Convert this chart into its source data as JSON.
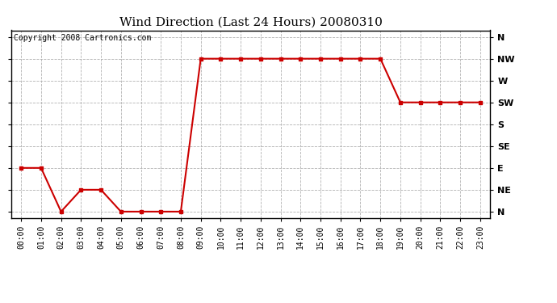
{
  "title": "Wind Direction (Last 24 Hours) 20080310",
  "copyright": "Copyright 2008 Cartronics.com",
  "x_labels": [
    "00:00",
    "01:00",
    "02:00",
    "03:00",
    "04:00",
    "05:00",
    "06:00",
    "07:00",
    "08:00",
    "09:00",
    "10:00",
    "11:00",
    "12:00",
    "13:00",
    "14:00",
    "15:00",
    "16:00",
    "17:00",
    "18:00",
    "19:00",
    "20:00",
    "21:00",
    "22:00",
    "23:00"
  ],
  "y_ticks": [
    0,
    1,
    2,
    3,
    4,
    5,
    6,
    7,
    8
  ],
  "y_labels": [
    "N",
    "NE",
    "E",
    "SE",
    "S",
    "SW",
    "W",
    "NW",
    "N"
  ],
  "data_x": [
    0,
    1,
    2,
    3,
    4,
    5,
    6,
    7,
    8,
    9,
    10,
    11,
    12,
    13,
    14,
    15,
    16,
    17,
    18,
    19,
    20,
    21,
    22,
    23
  ],
  "data_y": [
    2,
    2,
    0,
    1,
    1,
    0,
    0,
    0,
    0,
    7,
    7,
    7,
    7,
    7,
    7,
    7,
    7,
    7,
    7,
    5,
    5,
    5,
    5,
    5
  ],
  "line_color": "#cc0000",
  "marker": "s",
  "marker_size": 3,
  "background_color": "#ffffff",
  "plot_bg_color": "#ffffff",
  "grid_color": "#aaaaaa",
  "title_fontsize": 11,
  "copyright_fontsize": 7,
  "tick_fontsize": 7,
  "ylim": [
    -0.3,
    8.3
  ],
  "xlim": [
    -0.5,
    23.5
  ]
}
